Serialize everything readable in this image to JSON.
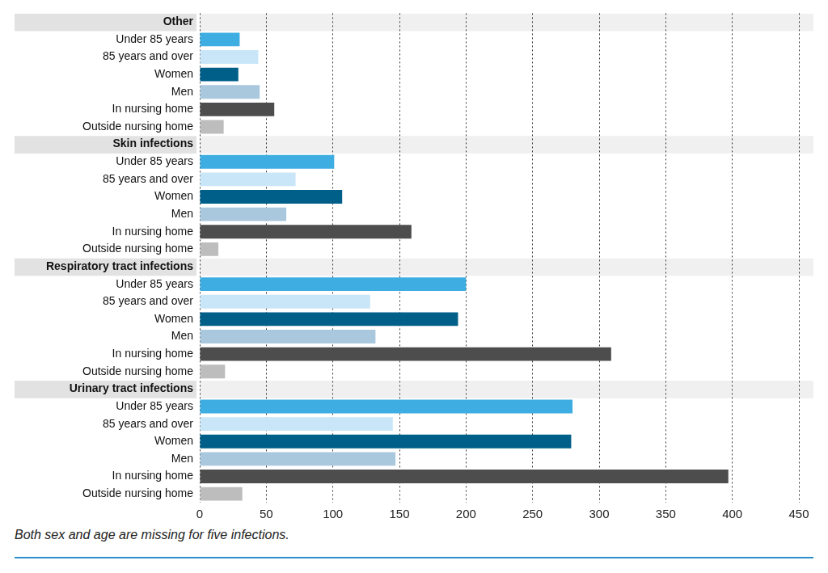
{
  "chart_data": {
    "type": "bar",
    "orientation": "horizontal",
    "groups": [
      {
        "title": "Other",
        "categories": [
          "Under 85 years",
          "85 years and over",
          "Women",
          "Men",
          "In nursing home",
          "Outside nursing home"
        ],
        "values": [
          30,
          44,
          29,
          45,
          56,
          18
        ],
        "colors": [
          "#3eade2",
          "#c9e6f8",
          "#005f88",
          "#a9c8dd",
          "#4d4d4d",
          "#bdbdbd"
        ]
      },
      {
        "title": "Skin infections",
        "categories": [
          "Under 85 years",
          "85 years and over",
          "Women",
          "Men",
          "In nursing home",
          "Outside nursing home"
        ],
        "values": [
          101,
          72,
          107,
          65,
          159,
          14
        ],
        "colors": [
          "#3eade2",
          "#c9e6f8",
          "#005f88",
          "#a9c8dd",
          "#4d4d4d",
          "#bdbdbd"
        ]
      },
      {
        "title": "Respiratory tract infections",
        "categories": [
          "Under 85 years",
          "85 years and over",
          "Women",
          "Men",
          "In nursing home",
          "Outside nursing home"
        ],
        "values": [
          200,
          128,
          194,
          132,
          309,
          19
        ],
        "colors": [
          "#3eade2",
          "#c9e6f8",
          "#005f88",
          "#a9c8dd",
          "#4d4d4d",
          "#bdbdbd"
        ]
      },
      {
        "title": "Urinary tract infections",
        "categories": [
          "Under 85 years",
          "85 years and over",
          "Women",
          "Men",
          "In nursing home",
          "Outside nursing home"
        ],
        "values": [
          280,
          145,
          279,
          147,
          397,
          32
        ],
        "colors": [
          "#3eade2",
          "#c9e6f8",
          "#005f88",
          "#a9c8dd",
          "#4d4d4d",
          "#bdbdbd"
        ]
      }
    ],
    "xlim": [
      0,
      450
    ],
    "xticks": [
      0,
      50,
      100,
      150,
      200,
      250,
      300,
      350,
      400,
      450
    ],
    "grid": true,
    "note": "Both sex and age are missing for five infections."
  }
}
